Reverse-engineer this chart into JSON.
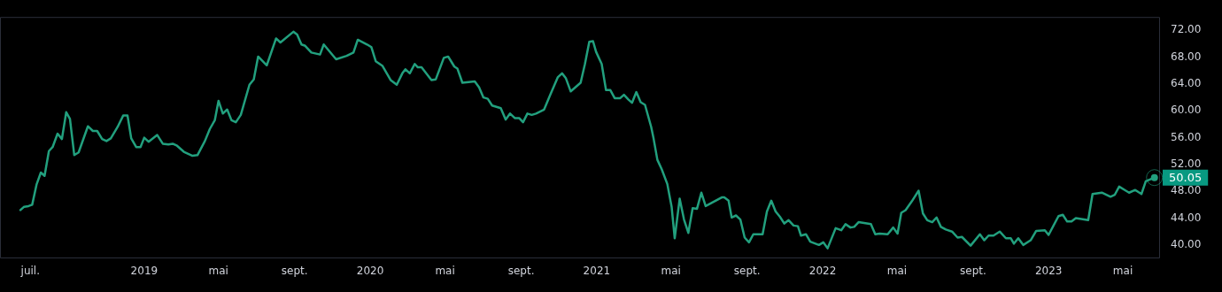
{
  "chart_data": {
    "type": "line",
    "x": [
      "2018-06-15",
      "2018-06-21",
      "2018-06-28",
      "2018-07-04",
      "2018-07-11",
      "2018-07-18",
      "2018-07-24",
      "2018-07-31",
      "2018-08-06",
      "2018-08-14",
      "2018-08-21",
      "2018-08-28",
      "2018-09-03",
      "2018-09-10",
      "2018-09-17",
      "2018-10-02",
      "2018-10-10",
      "2018-10-17",
      "2018-10-25",
      "2018-11-01",
      "2018-11-08",
      "2018-11-19",
      "2018-11-28",
      "2018-12-05",
      "2018-12-11",
      "2018-12-19",
      "2018-12-26",
      "2019-01-01",
      "2019-01-08",
      "2019-01-22",
      "2019-01-31",
      "2019-02-09",
      "2019-02-16",
      "2019-02-23",
      "2019-03-06",
      "2019-03-20",
      "2019-03-28",
      "2019-04-09",
      "2019-04-17",
      "2019-04-25",
      "2019-05-01",
      "2019-05-08",
      "2019-05-15",
      "2019-05-22",
      "2019-05-29",
      "2019-06-06",
      "2019-06-20",
      "2019-06-27",
      "2019-07-04",
      "2019-07-18",
      "2019-08-02",
      "2019-08-09",
      "2019-08-30",
      "2019-09-05",
      "2019-09-12",
      "2019-09-18",
      "2019-09-28",
      "2019-10-12",
      "2019-10-18",
      "2019-11-07",
      "2019-11-24",
      "2019-12-05",
      "2019-12-12",
      "2019-12-27",
      "2020-01-03",
      "2020-01-10",
      "2020-01-21",
      "2020-02-03",
      "2020-02-13",
      "2020-02-22",
      "2020-02-27",
      "2020-03-05",
      "2020-03-13",
      "2020-03-18",
      "2020-03-24",
      "2020-04-09",
      "2020-04-16",
      "2020-04-29",
      "2020-05-06",
      "2020-05-16",
      "2020-05-21",
      "2020-05-29",
      "2020-06-18",
      "2020-06-25",
      "2020-07-02",
      "2020-07-09",
      "2020-07-16",
      "2020-07-30",
      "2020-08-07",
      "2020-08-14",
      "2020-08-22",
      "2020-08-29",
      "2020-09-04",
      "2020-09-11",
      "2020-09-18",
      "2020-09-25",
      "2020-10-08",
      "2020-10-18",
      "2020-10-30",
      "2020-11-06",
      "2020-11-12",
      "2020-11-20",
      "2020-12-06",
      "2020-12-13",
      "2020-12-20",
      "2020-12-26",
      "2020-12-31",
      "2021-01-09",
      "2021-01-16",
      "2021-01-23",
      "2021-01-30",
      "2021-02-08",
      "2021-02-14",
      "2021-02-21",
      "2021-02-27",
      "2021-03-06",
      "2021-03-13",
      "2021-03-20",
      "2021-03-30",
      "2021-04-03",
      "2021-04-09",
      "2021-04-16",
      "2021-04-25",
      "2021-05-02",
      "2021-05-07",
      "2021-05-15",
      "2021-05-22",
      "2021-05-29",
      "2021-06-05",
      "2021-06-12",
      "2021-06-19",
      "2021-06-26",
      "2021-07-08",
      "2021-07-22",
      "2021-07-26",
      "2021-08-02",
      "2021-08-07",
      "2021-08-14",
      "2021-08-21",
      "2021-08-28",
      "2021-09-04",
      "2021-09-11",
      "2021-09-26",
      "2021-10-03",
      "2021-10-10",
      "2021-10-17",
      "2021-10-24",
      "2021-10-31",
      "2021-11-07",
      "2021-11-15",
      "2021-11-22",
      "2021-11-27",
      "2021-12-05",
      "2021-12-12",
      "2021-12-26",
      "2022-01-02",
      "2022-01-09",
      "2022-01-22",
      "2022-01-31",
      "2022-02-07",
      "2022-02-15",
      "2022-02-21",
      "2022-02-28",
      "2022-03-20",
      "2022-03-27",
      "2022-04-03",
      "2022-04-16",
      "2022-04-25",
      "2022-05-02",
      "2022-05-08",
      "2022-05-15",
      "2022-05-25",
      "2022-06-05",
      "2022-06-12",
      "2022-06-19",
      "2022-06-27",
      "2022-07-04",
      "2022-07-11",
      "2022-07-19",
      "2022-07-29",
      "2022-08-07",
      "2022-08-14",
      "2022-08-28",
      "2022-09-12",
      "2022-09-19",
      "2022-09-26",
      "2022-10-04",
      "2022-10-14",
      "2022-10-24",
      "2022-11-01",
      "2022-11-06",
      "2022-11-13",
      "2022-11-21",
      "2022-12-03",
      "2022-12-12",
      "2022-12-26",
      "2023-01-01",
      "2023-01-17",
      "2023-01-24",
      "2023-01-31",
      "2023-02-07",
      "2023-02-14",
      "2023-03-06",
      "2023-03-13",
      "2023-03-28",
      "2023-04-11",
      "2023-04-18",
      "2023-04-25",
      "2023-05-11",
      "2023-05-21",
      "2023-05-31",
      "2023-06-07",
      "2023-06-21"
    ],
    "series": [
      {
        "color": "#22a07e",
        "values": [
          45.2,
          45.7,
          45.8,
          46.0,
          49.0,
          50.8,
          50.3,
          54.0,
          54.6,
          56.6,
          55.8,
          59.8,
          58.8,
          53.4,
          53.8,
          57.7,
          57.0,
          57.0,
          55.8,
          55.5,
          55.9,
          57.6,
          59.3,
          59.3,
          55.9,
          54.6,
          54.6,
          56.0,
          55.4,
          56.4,
          55.1,
          55.0,
          55.1,
          54.8,
          53.9,
          53.3,
          53.4,
          55.5,
          57.3,
          58.6,
          61.5,
          59.6,
          60.2,
          58.6,
          58.3,
          59.4,
          63.9,
          64.7,
          68.1,
          66.8,
          70.8,
          70.2,
          71.8,
          71.4,
          69.9,
          69.7,
          68.7,
          68.4,
          69.9,
          67.7,
          68.2,
          68.7,
          70.6,
          69.9,
          69.5,
          67.4,
          66.7,
          64.6,
          63.9,
          65.6,
          66.2,
          65.6,
          67.0,
          66.5,
          66.5,
          64.6,
          64.7,
          67.9,
          68.1,
          66.6,
          66.3,
          64.2,
          64.4,
          63.5,
          62.0,
          61.8,
          60.8,
          60.4,
          58.7,
          59.6,
          58.9,
          58.9,
          58.3,
          59.6,
          59.4,
          59.6,
          60.2,
          62.4,
          65.0,
          65.6,
          64.9,
          62.9,
          64.2,
          67.0,
          70.3,
          70.4,
          68.8,
          67.0,
          63.1,
          63.1,
          61.9,
          61.9,
          62.4,
          61.7,
          61.2,
          62.8,
          61.3,
          60.9,
          57.6,
          55.8,
          52.7,
          51.3,
          49.1,
          45.7,
          41.0,
          46.9,
          43.8,
          41.8,
          45.5,
          45.4,
          47.8,
          45.8,
          46.4,
          47.1,
          47.1,
          46.6,
          44.1,
          44.4,
          43.8,
          41.1,
          40.4,
          41.6,
          41.6,
          45.0,
          46.6,
          45.0,
          44.2,
          43.2,
          43.7,
          42.9,
          42.8,
          41.4,
          41.6,
          40.5,
          40.0,
          40.4,
          39.5,
          42.5,
          42.2,
          43.1,
          42.6,
          42.7,
          43.4,
          43.1,
          41.6,
          41.7,
          41.6,
          42.6,
          41.7,
          44.8,
          45.2,
          46.5,
          48.1,
          44.7,
          43.7,
          43.4,
          44.1,
          42.7,
          42.3,
          42.0,
          41.1,
          41.2,
          39.9,
          41.6,
          40.7,
          41.4,
          41.4,
          42.0,
          41.0,
          41.0,
          40.2,
          41.0,
          40.0,
          40.7,
          42.1,
          42.2,
          41.5,
          44.3,
          44.5,
          43.5,
          43.5,
          44.0,
          43.7,
          47.6,
          47.8,
          47.2,
          47.5,
          48.7,
          47.8,
          48.2,
          47.6,
          49.5,
          50.05
        ]
      }
    ],
    "xlim": [
      "2018-05-13",
      "2023-06-30"
    ],
    "xticks": [
      {
        "value": "2018-07-01",
        "label": "juil."
      },
      {
        "value": "2019-01-01",
        "label": "2019"
      },
      {
        "value": "2019-05-01",
        "label": "mai"
      },
      {
        "value": "2019-09-01",
        "label": "sept."
      },
      {
        "value": "2020-01-01",
        "label": "2020"
      },
      {
        "value": "2020-05-01",
        "label": "mai"
      },
      {
        "value": "2020-09-01",
        "label": "sept."
      },
      {
        "value": "2021-01-01",
        "label": "2021"
      },
      {
        "value": "2021-05-01",
        "label": "mai"
      },
      {
        "value": "2021-09-01",
        "label": "sept."
      },
      {
        "value": "2022-01-01",
        "label": "2022"
      },
      {
        "value": "2022-05-01",
        "label": "mai"
      },
      {
        "value": "2022-09-01",
        "label": "sept."
      },
      {
        "value": "2023-01-01",
        "label": "2023"
      },
      {
        "value": "2023-05-01",
        "label": "mai"
      }
    ],
    "ylim": [
      38,
      74
    ],
    "yticks": [
      {
        "value": 40,
        "label": "40.00"
      },
      {
        "value": 44,
        "label": "44.00"
      },
      {
        "value": 48,
        "label": "48.00"
      },
      {
        "value": 52,
        "label": "52.00"
      },
      {
        "value": 56,
        "label": "56.00"
      },
      {
        "value": 60,
        "label": "60.00"
      },
      {
        "value": 64,
        "label": "64.00"
      },
      {
        "value": 68,
        "label": "68.00"
      },
      {
        "value": 72,
        "label": "72.00"
      }
    ],
    "marker": "none",
    "line_style": "solid",
    "annotations": [
      {
        "text": "50.05",
        "x": "2023-06-21",
        "y": 50.05
      }
    ]
  }
}
